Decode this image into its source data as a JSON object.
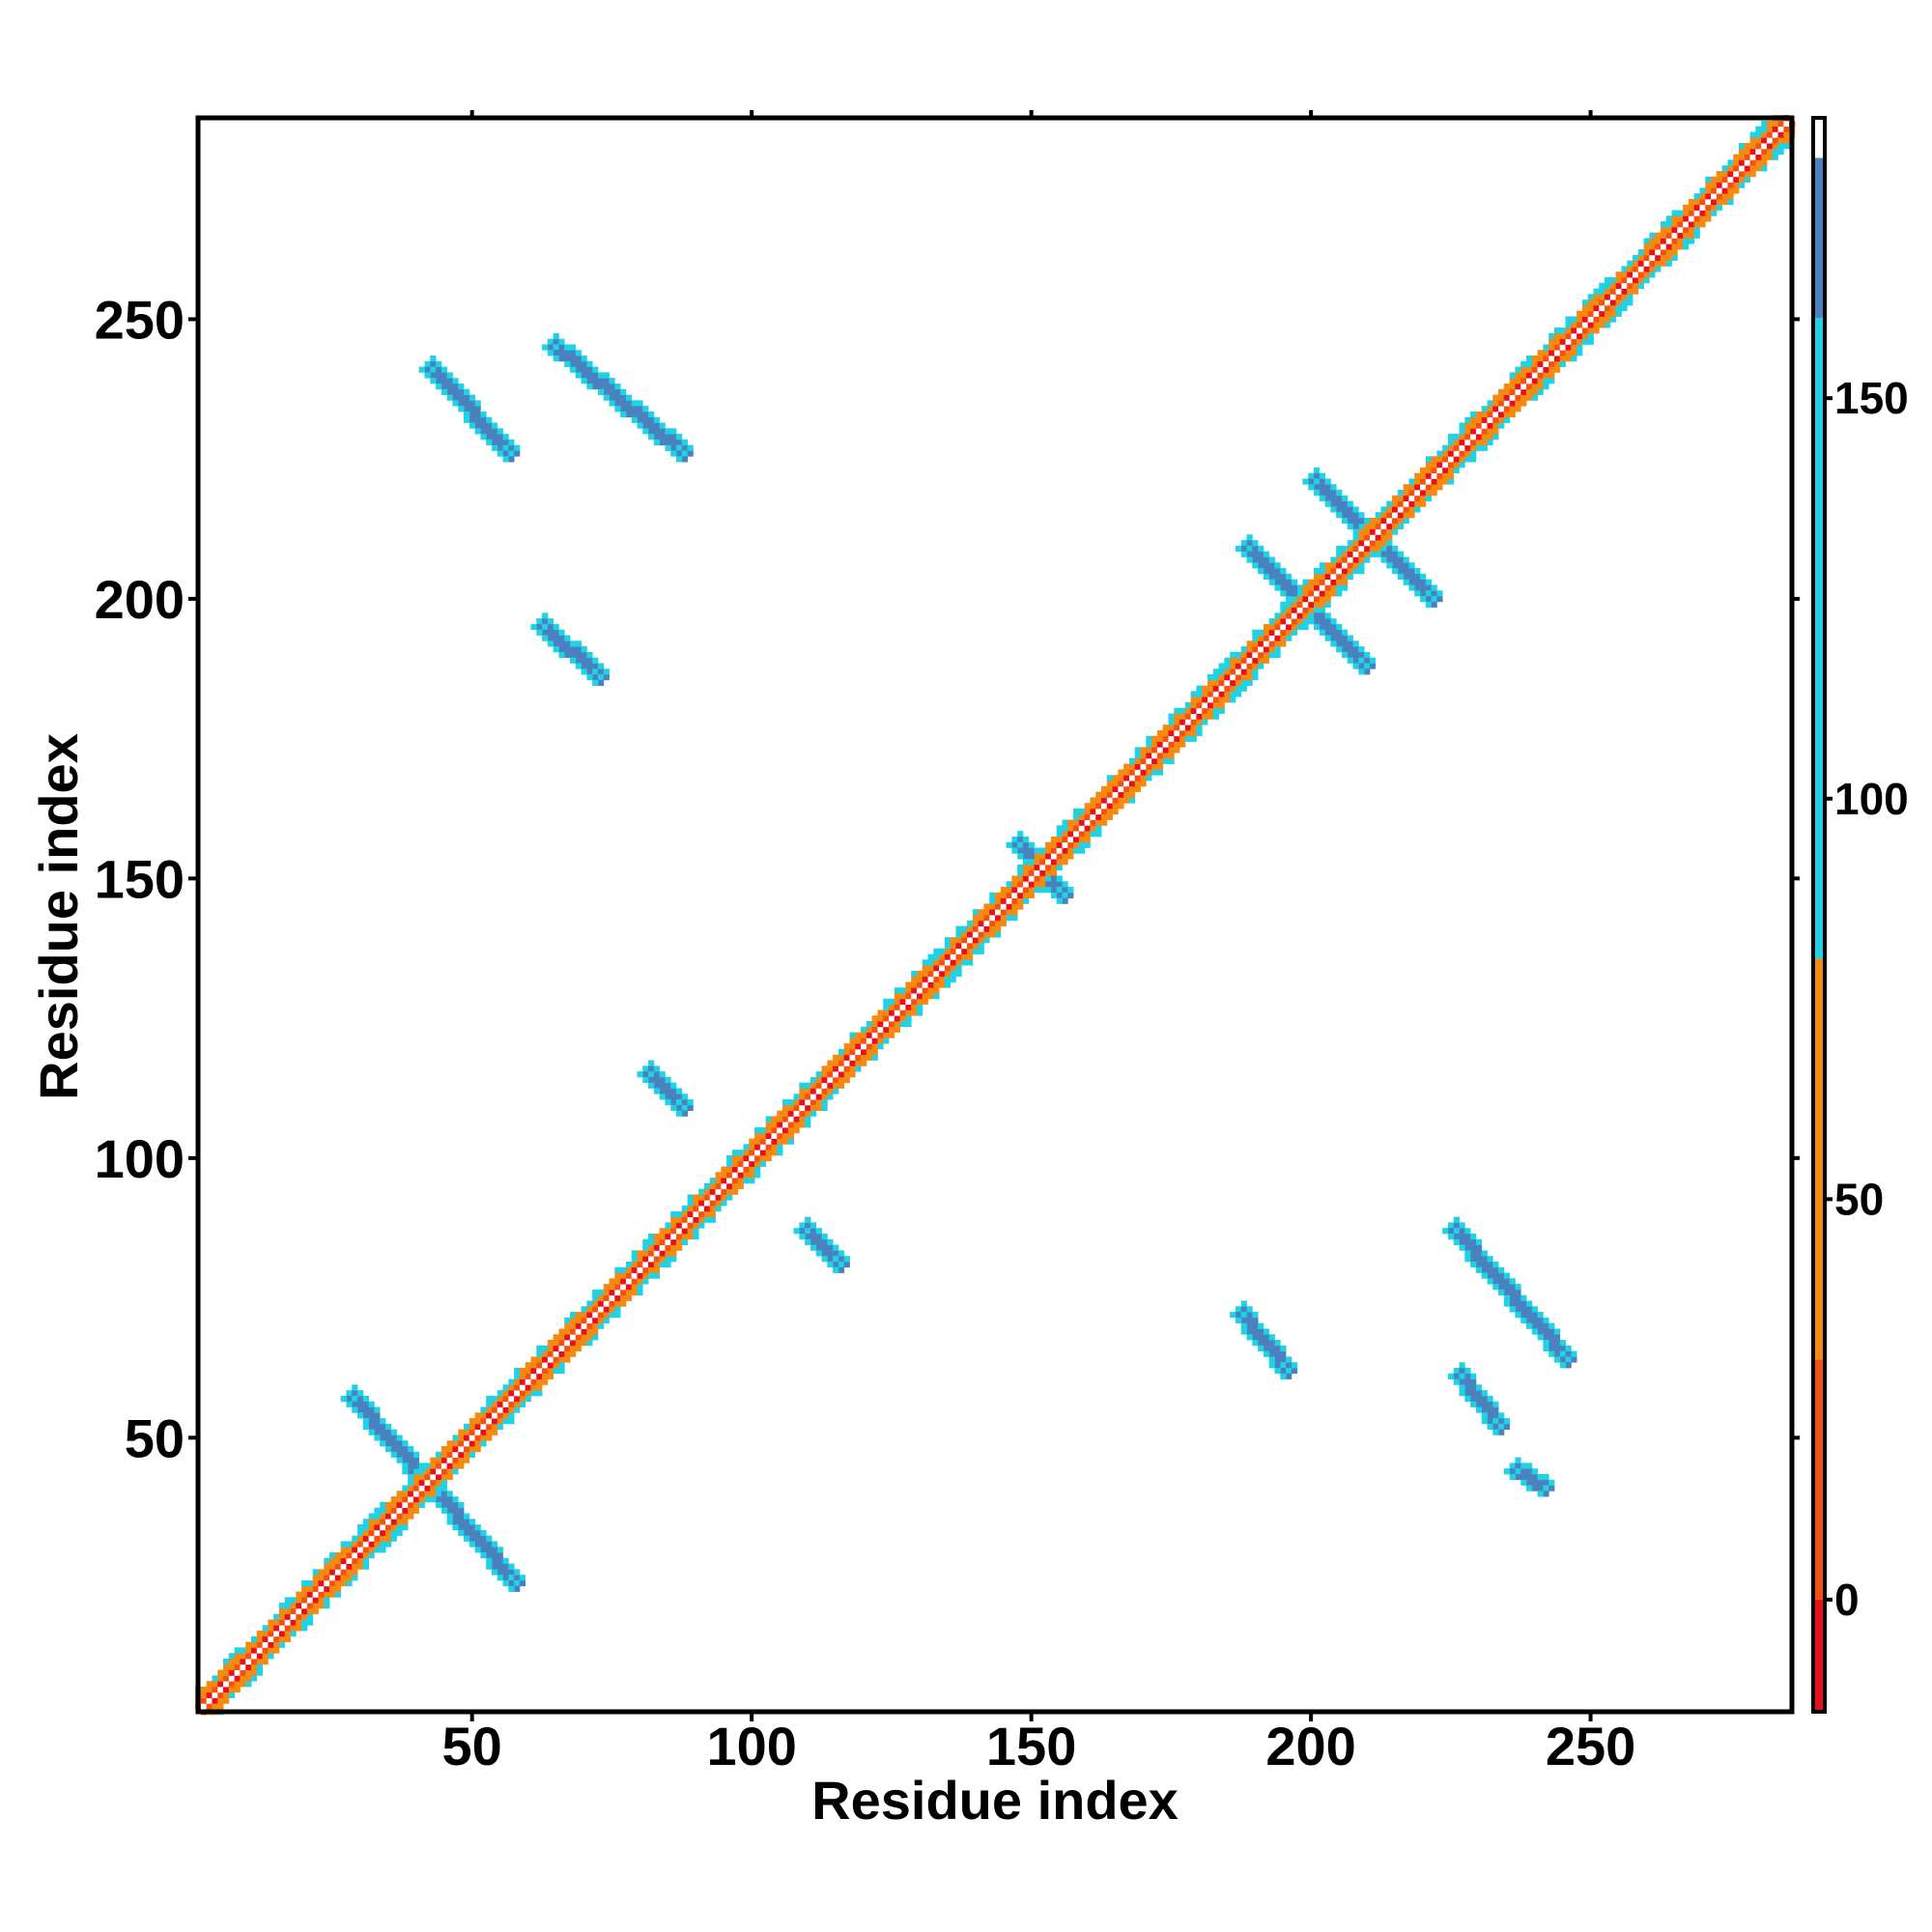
{
  "chart_data": {
    "type": "heatmap",
    "title": "",
    "xlabel": "Residue index",
    "ylabel": "Residue index",
    "xlim": [
      1,
      286
    ],
    "ylim": [
      1,
      286
    ],
    "x_ticks": [
      50,
      100,
      150,
      200,
      250
    ],
    "y_ticks": [
      50,
      100,
      150,
      200,
      250
    ],
    "x_tick_labels": [
      "50",
      "100",
      "150",
      "200",
      "250"
    ],
    "y_tick_labels": [
      "50",
      "100",
      "150",
      "200",
      "250"
    ],
    "grid": false,
    "legend": "none",
    "colorbar": {
      "position": "right",
      "range": [
        -14,
        185
      ],
      "ticks": [
        0,
        50,
        100,
        150
      ],
      "tick_labels": [
        "0",
        "50",
        "100",
        "150"
      ],
      "bands": [
        {
          "from": -14,
          "to": 0,
          "color": "#e8101a"
        },
        {
          "from": 0,
          "to": 30,
          "color": "#f4500f"
        },
        {
          "from": 30,
          "to": 80,
          "color": "#f58a12"
        },
        {
          "from": 80,
          "to": 160,
          "color": "#1fd2e6"
        },
        {
          "from": 160,
          "to": 180,
          "color": "#4a82c0"
        },
        {
          "from": 180,
          "to": 185,
          "color": "#ffffff"
        }
      ]
    },
    "categories_colors": {
      "red": "#e8101a",
      "orange": "#f58a12",
      "orange-red": "#f4500f",
      "cyan": "#1fd2e6",
      "steel-blue": "#4a82c0"
    },
    "features": [
      {
        "kind": "diagonal",
        "from": 1,
        "to": 286
      },
      {
        "kind": "antidiag",
        "x": [
          28,
          58
        ],
        "y": [
          58,
          24
        ],
        "color": "steel-blue"
      },
      {
        "kind": "antidiag",
        "x": [
          42,
          57
        ],
        "y": [
          242,
          226
        ],
        "color": "steel-blue"
      },
      {
        "kind": "antidiag",
        "x": [
          64,
          88
        ],
        "y": [
          246,
          226
        ],
        "color": "steel-blue"
      },
      {
        "kind": "antidiag",
        "x": [
          62,
          73
        ],
        "y": [
          196,
          186
        ],
        "color": "steel-blue"
      },
      {
        "kind": "antidiag",
        "x": [
          81,
          88
        ],
        "y": [
          116,
          109
        ],
        "color": "steel-blue"
      },
      {
        "kind": "antidiag",
        "x": [
          109,
          116
        ],
        "y": [
          88,
          81
        ],
        "color": "steel-blue"
      },
      {
        "kind": "antidiag",
        "x": [
          147,
          156
        ],
        "y": [
          157,
          147
        ],
        "color": "steel-blue"
      },
      {
        "kind": "antidiag",
        "x": [
          188,
          210
        ],
        "y": [
          210,
          188
        ],
        "color": "steel-blue"
      },
      {
        "kind": "antidiag",
        "x": [
          200,
          222
        ],
        "y": [
          222,
          200
        ],
        "color": "steel-blue"
      },
      {
        "kind": "antidiag",
        "x": [
          187,
          196
        ],
        "y": [
          73,
          62
        ],
        "color": "steel-blue"
      },
      {
        "kind": "antidiag",
        "x": [
          225,
          246
        ],
        "y": [
          88,
          64
        ],
        "color": "steel-blue"
      },
      {
        "kind": "antidiag",
        "x": [
          226,
          234
        ],
        "y": [
          62,
          52
        ],
        "color": "steel-blue"
      },
      {
        "kind": "antidiag",
        "x": [
          236,
          242
        ],
        "y": [
          45,
          41
        ],
        "color": "steel-blue"
      }
    ]
  }
}
